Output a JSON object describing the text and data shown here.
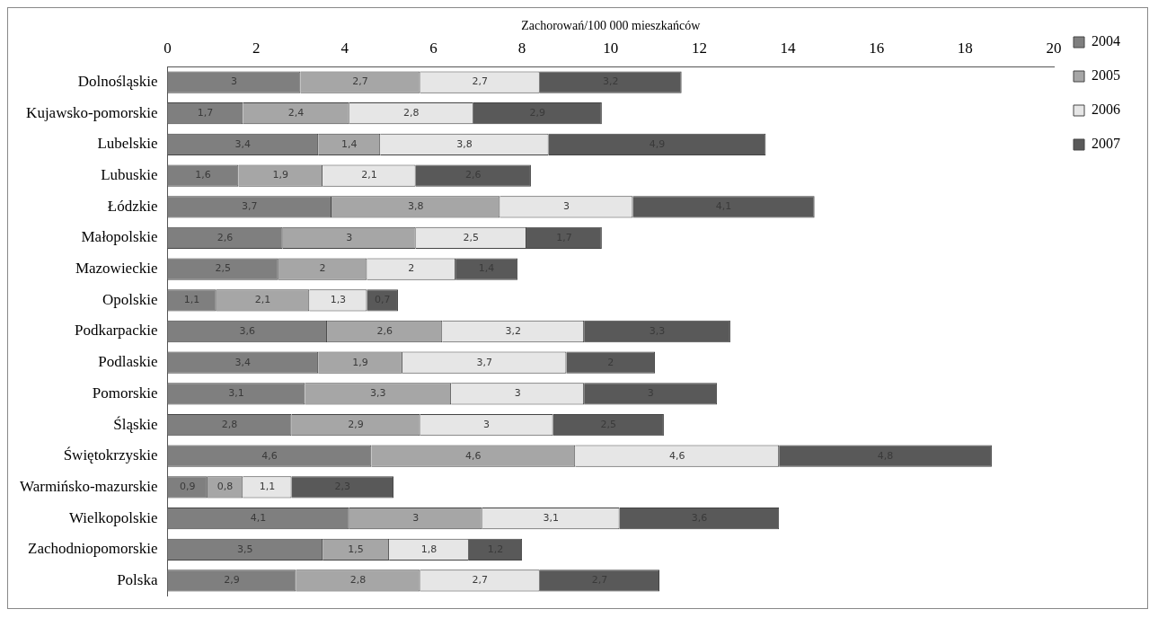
{
  "chart_data": {
    "type": "bar",
    "orientation": "horizontal",
    "stacked": true,
    "xlabel": "Zachorowań/100 000 mieszkańców",
    "xlim": [
      0,
      20
    ],
    "xticks": [
      0,
      2,
      4,
      6,
      8,
      10,
      12,
      14,
      16,
      18,
      20
    ],
    "grid": false,
    "legend": "right",
    "categories": [
      "Dolnośląskie",
      "Kujawsko-pomorskie",
      "Lubelskie",
      "Lubuskie",
      "Łódzkie",
      "Małopolskie",
      "Mazowieckie",
      "Opolskie",
      "Podkarpackie",
      "Podlaskie",
      "Pomorskie",
      "Śląskie",
      "Świętokrzyskie",
      "Warmińsko-mazurskie",
      "Wielkopolskie",
      "Zachodniopomorskie",
      "Polska"
    ],
    "series": [
      {
        "name": "2004",
        "color": "#7f7f7f",
        "values": [
          3,
          1.7,
          3.4,
          1.6,
          3.7,
          2.6,
          2.5,
          1.1,
          3.6,
          3.4,
          3.1,
          2.8,
          4.6,
          0.9,
          4.1,
          3.5,
          2.9
        ],
        "value_labels": [
          "3",
          "1,7",
          "3,4",
          "1,6",
          "3,7",
          "2,6",
          "2,5",
          "1,1",
          "3,6",
          "3,4",
          "3,1",
          "2,8",
          "4,6",
          "0,9",
          "4,1",
          "3,5",
          "2,9"
        ]
      },
      {
        "name": "2005",
        "color": "#a6a6a6",
        "values": [
          2.7,
          2.4,
          1.4,
          1.9,
          3.8,
          3,
          2,
          2.1,
          2.6,
          1.9,
          3.3,
          2.9,
          4.6,
          0.8,
          3,
          1.5,
          2.8
        ],
        "value_labels": [
          "2,7",
          "2,4",
          "1,4",
          "1,9",
          "3,8",
          "3",
          "2",
          "2,1",
          "2,6",
          "1,9",
          "3,3",
          "2,9",
          "4,6",
          "0,8",
          "3",
          "1,5",
          "2,8"
        ]
      },
      {
        "name": "2006",
        "color": "#e6e6e6",
        "values": [
          2.7,
          2.8,
          3.8,
          2.1,
          3,
          2.5,
          2,
          1.3,
          3.2,
          3.7,
          3,
          3,
          4.6,
          1.1,
          3.1,
          1.8,
          2.7
        ],
        "value_labels": [
          "2,7",
          "2,8",
          "3,8",
          "2,1",
          "3",
          "2,5",
          "2",
          "1,3",
          "3,2",
          "3,7",
          "3",
          "3",
          "4,6",
          "1,1",
          "3,1",
          "1,8",
          "2,7"
        ]
      },
      {
        "name": "2007",
        "color": "#595959",
        "values": [
          3.2,
          2.9,
          4.9,
          2.6,
          4.1,
          1.7,
          1.4,
          0.7,
          3.3,
          2,
          3,
          2.5,
          4.8,
          2.3,
          3.6,
          1.2,
          2.7
        ],
        "value_labels": [
          "3,2",
          "2,9",
          "4,9",
          "2,6",
          "4,1",
          "1,7",
          "1,4",
          "0,7",
          "3,3",
          "2",
          "3",
          "2,5",
          "4,8",
          "2,3",
          "3,6",
          "1,2",
          "2,7"
        ]
      }
    ]
  }
}
